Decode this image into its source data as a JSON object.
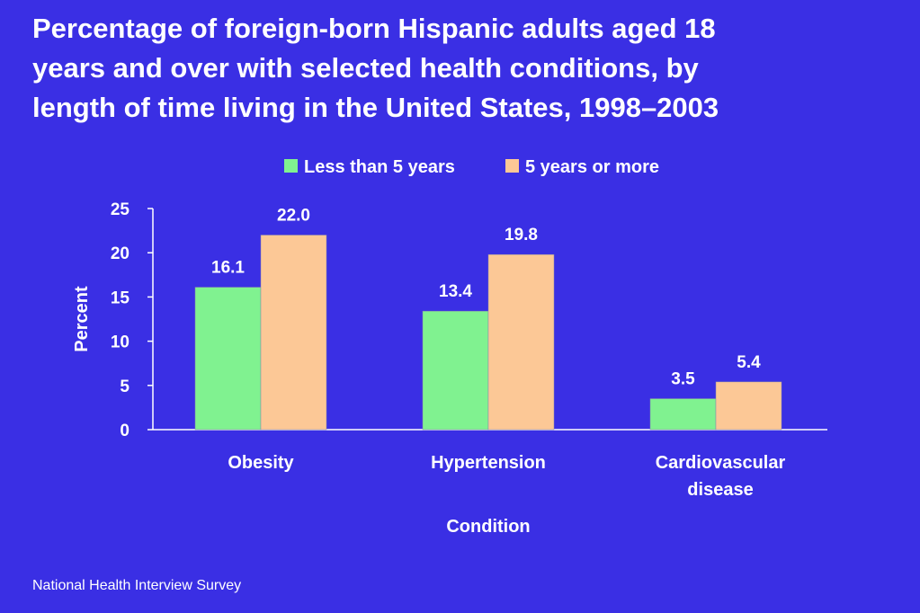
{
  "colors": {
    "background": "#3a2fe4",
    "series_1": "#80f290",
    "series_2": "#fcc896",
    "text": "#ffffff"
  },
  "source": "National Health Interview Survey",
  "chart_data": {
    "type": "bar",
    "title_lines": [
      "Percentage of foreign-born Hispanic adults aged 18",
      "years and over with selected health conditions, by",
      "length of time living in the United States, 1998–2003"
    ],
    "xlabel": "Condition",
    "ylabel": "Percent",
    "ylim": [
      0,
      25
    ],
    "yticks": [
      0,
      5,
      10,
      15,
      20,
      25
    ],
    "grid": false,
    "legend_position": "top-center",
    "categories": [
      [
        "Obesity"
      ],
      [
        "Hypertension"
      ],
      [
        "Cardiovascular",
        "disease"
      ]
    ],
    "series": [
      {
        "name": "Less than 5 years",
        "values": [
          16.1,
          13.4,
          3.5
        ],
        "labels": [
          "16.1",
          "13.4",
          "3.5"
        ]
      },
      {
        "name": "5 years or more",
        "values": [
          22.0,
          19.8,
          5.4
        ],
        "labels": [
          "22.0",
          "19.8",
          "5.4"
        ]
      }
    ]
  }
}
